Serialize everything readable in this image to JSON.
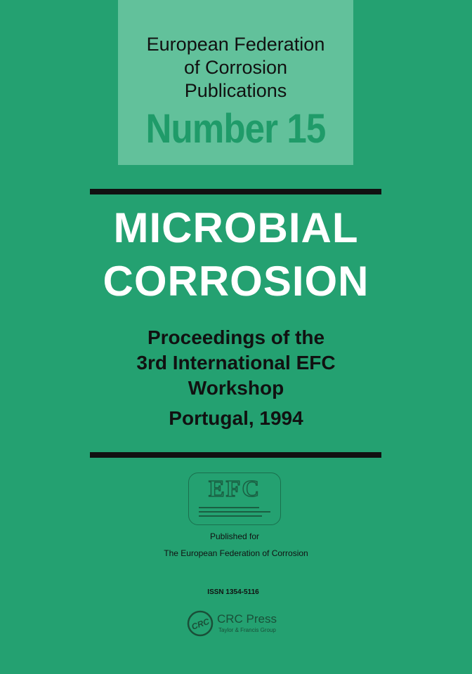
{
  "series": {
    "lines": [
      "European Federation",
      "of Corrosion",
      "Publications"
    ],
    "number": "Number 15"
  },
  "title": [
    "MICROBIAL",
    "CORROSION"
  ],
  "subtitle": [
    "Proceedings of the",
    "3rd International EFC",
    "Workshop",
    "Portugal, 1994"
  ],
  "efc_logo": {
    "letters": "EFC"
  },
  "published_for": [
    "Published for",
    "The European Federation of Corrosion"
  ],
  "issn": "ISSN 1354-5116",
  "publisher": {
    "logo": "CRC",
    "name": "CRC Press",
    "group": "Taylor & Francis Group"
  },
  "colors": {
    "background": "#24a171",
    "series_box": "#62c19b",
    "number": "#1f9b69"
  }
}
